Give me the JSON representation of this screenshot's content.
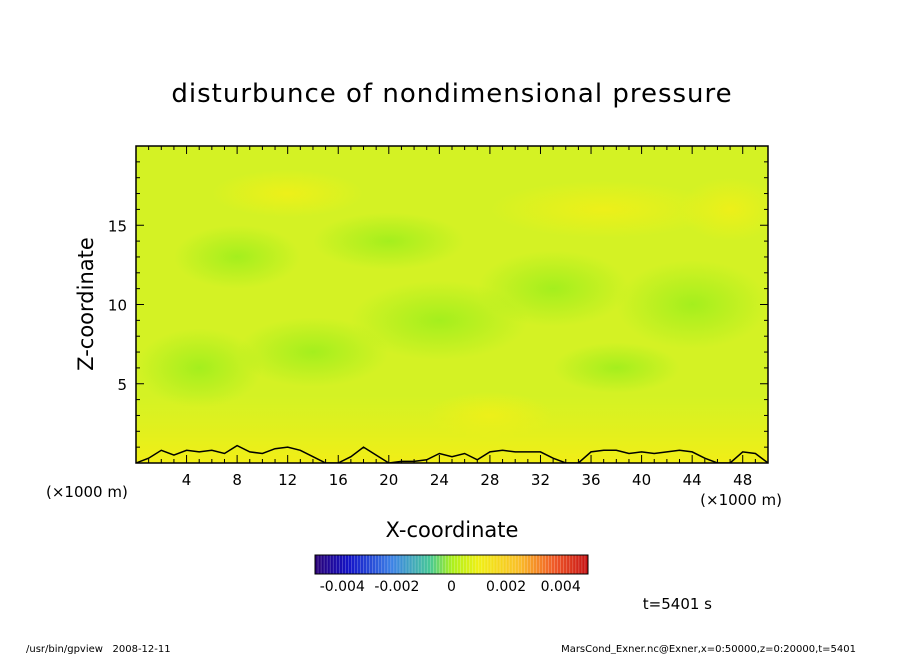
{
  "chart_data": {
    "type": "heatmap",
    "title": "disturbunce of nondimensional pressure",
    "xlabel": "X-coordinate",
    "ylabel": "Z-coordinate",
    "x_unit_left": "(×1000 m)",
    "x_unit_right": "(×1000 m)",
    "xlim": [
      0,
      50
    ],
    "ylim": [
      0,
      20
    ],
    "x_ticks": [
      {
        "value": 4,
        "label": "4"
      },
      {
        "value": 8,
        "label": "8"
      },
      {
        "value": 12,
        "label": "12"
      },
      {
        "value": 16,
        "label": "16"
      },
      {
        "value": 20,
        "label": "20"
      },
      {
        "value": 24,
        "label": "24"
      },
      {
        "value": 28,
        "label": "28"
      },
      {
        "value": 32,
        "label": "32"
      },
      {
        "value": 36,
        "label": "36"
      },
      {
        "value": 40,
        "label": "40"
      },
      {
        "value": 44,
        "label": "44"
      },
      {
        "value": 48,
        "label": "48"
      }
    ],
    "y_ticks": [
      {
        "value": 5,
        "label": "5"
      },
      {
        "value": 10,
        "label": "10"
      },
      {
        "value": 15,
        "label": "15"
      }
    ],
    "colorbar": {
      "min": -0.005,
      "max": 0.005,
      "tick_labels": [
        {
          "value": -0.004,
          "label": "-0.004"
        },
        {
          "value": -0.002,
          "label": "-0.002"
        },
        {
          "value": 0,
          "label": "0"
        },
        {
          "value": 0.002,
          "label": "0.002"
        },
        {
          "value": 0.004,
          "label": "0.004"
        }
      ]
    },
    "contour_line_x": [
      0,
      1,
      2,
      3,
      4,
      5,
      6,
      7,
      8,
      9,
      10,
      11,
      12,
      13,
      14,
      15,
      16,
      17,
      18,
      19,
      20,
      21,
      22,
      23,
      24,
      25,
      26,
      27,
      28,
      29,
      30,
      31,
      32,
      33,
      34,
      35,
      36,
      37,
      38,
      39,
      40,
      41,
      42,
      43,
      44,
      45,
      46,
      47,
      48,
      49,
      50
    ],
    "contour_line_z": [
      0,
      0.3,
      0.8,
      0.5,
      0.8,
      0.7,
      0.8,
      0.6,
      1.1,
      0.7,
      0.6,
      0.9,
      1.0,
      0.8,
      0.4,
      0,
      0,
      0.4,
      1.0,
      0.5,
      0,
      0.1,
      0.1,
      0.2,
      0.6,
      0.4,
      0.6,
      0.2,
      0.7,
      0.8,
      0.7,
      0.7,
      0.7,
      0.3,
      0,
      0,
      0.7,
      0.8,
      0.8,
      0.6,
      0.7,
      0.6,
      0.7,
      0.8,
      0.7,
      0.3,
      0,
      0,
      0.7,
      0.6,
      0
    ]
  },
  "footer": {
    "time_label": "t=5401 s",
    "program_info": "/usr/bin/gpview   2008-12-11",
    "file_info": "MarsCond_Exner.nc@Exner,x=0:50000,z=0:20000,t=5401"
  },
  "colors": {
    "field_light": "#d8f420",
    "field_green": "#a4f01c",
    "field_yellow": "#eef018",
    "frame": "#000000"
  }
}
